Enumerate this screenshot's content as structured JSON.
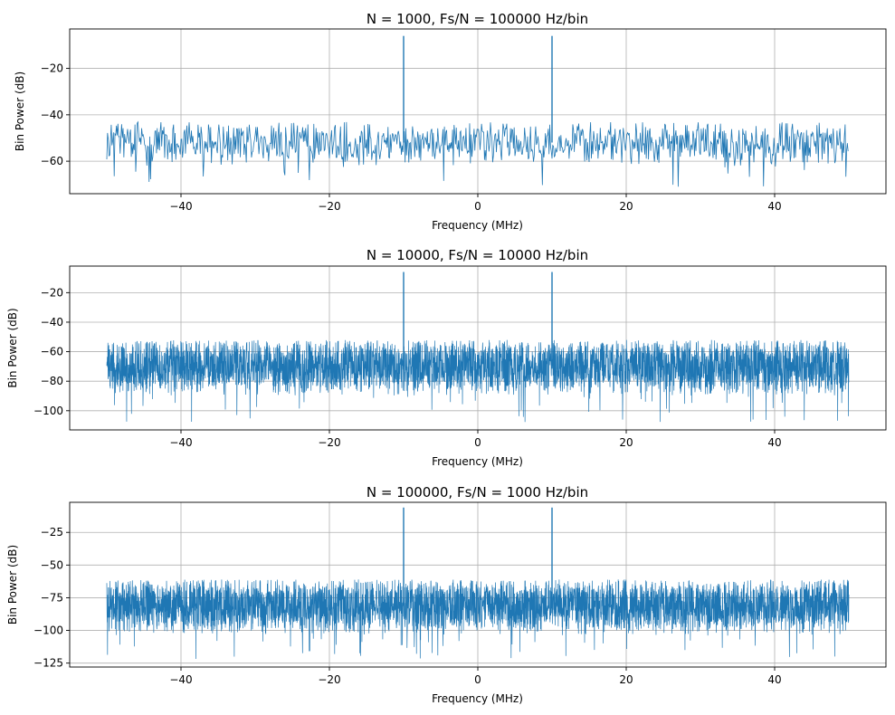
{
  "chart_data": [
    {
      "type": "line",
      "title": "N = 1000, Fs/N = 100000 Hz/bin",
      "xlabel": "Frequency (MHz)",
      "ylabel": "Bin Power (dB)",
      "xlim": [
        -55,
        55
      ],
      "ylim": [
        -74,
        -3
      ],
      "xticks": [
        -40,
        -20,
        0,
        20,
        40
      ],
      "yticks": [
        -20,
        -40,
        -60
      ],
      "grid": true,
      "color": "#1f77b4",
      "series": [
        {
          "x_range": [
            -50,
            49.9
          ],
          "num_points": 1000,
          "noise_floor_db": [
            -71,
            -43
          ],
          "peaks": [
            {
              "x": -10,
              "y": -6
            },
            {
              "x": 10,
              "y": -6
            }
          ]
        }
      ]
    },
    {
      "type": "line",
      "title": "N = 10000, Fs/N = 10000 Hz/bin",
      "xlabel": "Frequency (MHz)",
      "ylabel": "Bin Power (dB)",
      "xlim": [
        -55,
        55
      ],
      "ylim": [
        -113,
        -2
      ],
      "xticks": [
        -40,
        -20,
        0,
        20,
        40
      ],
      "yticks": [
        -20,
        -40,
        -60,
        -80,
        -100
      ],
      "grid": true,
      "color": "#1f77b4",
      "series": [
        {
          "x_range": [
            -50,
            49.99
          ],
          "num_points": 10000,
          "noise_floor_db": [
            -108,
            -52
          ],
          "peaks": [
            {
              "x": -10,
              "y": -6
            },
            {
              "x": 10,
              "y": -6
            }
          ]
        }
      ]
    },
    {
      "type": "line",
      "title": "N = 100000, Fs/N = 1000 Hz/bin",
      "xlabel": "Frequency (MHz)",
      "ylabel": "Bin Power (dB)",
      "xlim": [
        -55,
        55
      ],
      "ylim": [
        -128,
        -2
      ],
      "xticks": [
        -40,
        -20,
        0,
        20,
        40
      ],
      "yticks": [
        -25,
        -50,
        -75,
        -100,
        -125
      ],
      "grid": true,
      "color": "#1f77b4",
      "series": [
        {
          "x_range": [
            -50,
            49.999
          ],
          "num_points": 100000,
          "noise_floor_db": [
            -123,
            -61
          ],
          "peaks": [
            {
              "x": -10,
              "y": -6
            },
            {
              "x": 10,
              "y": -6
            }
          ]
        }
      ]
    }
  ]
}
